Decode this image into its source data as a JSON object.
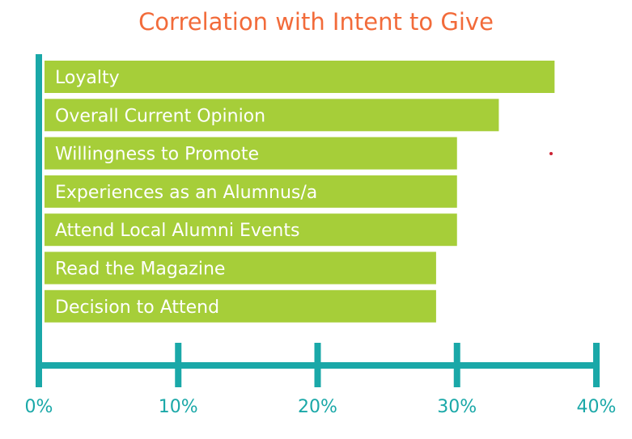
{
  "chart_data": {
    "type": "bar",
    "orientation": "horizontal",
    "title": "Correlation with Intent to Give",
    "categories": [
      "Loyalty",
      "Overall Current Opinion",
      "Willingness to Promote",
      "Experiences as an Alumnus/a",
      "Attend Local Alumni Events",
      "Read the Magazine",
      "Decision to Attend"
    ],
    "values": [
      37,
      33,
      30,
      30,
      30,
      28.5,
      28.5
    ],
    "xlim": [
      0,
      40
    ],
    "ticks": [
      "0%",
      "10%",
      "20%",
      "30%",
      "40%"
    ],
    "tick_values": [
      0,
      10,
      20,
      30,
      40
    ],
    "xlabel": "",
    "ylabel": "",
    "grid": false,
    "colors": {
      "bar": "#a6ce39",
      "axis": "#1aa8a8",
      "title": "#f26b3a",
      "marker": "#cc2233"
    }
  }
}
